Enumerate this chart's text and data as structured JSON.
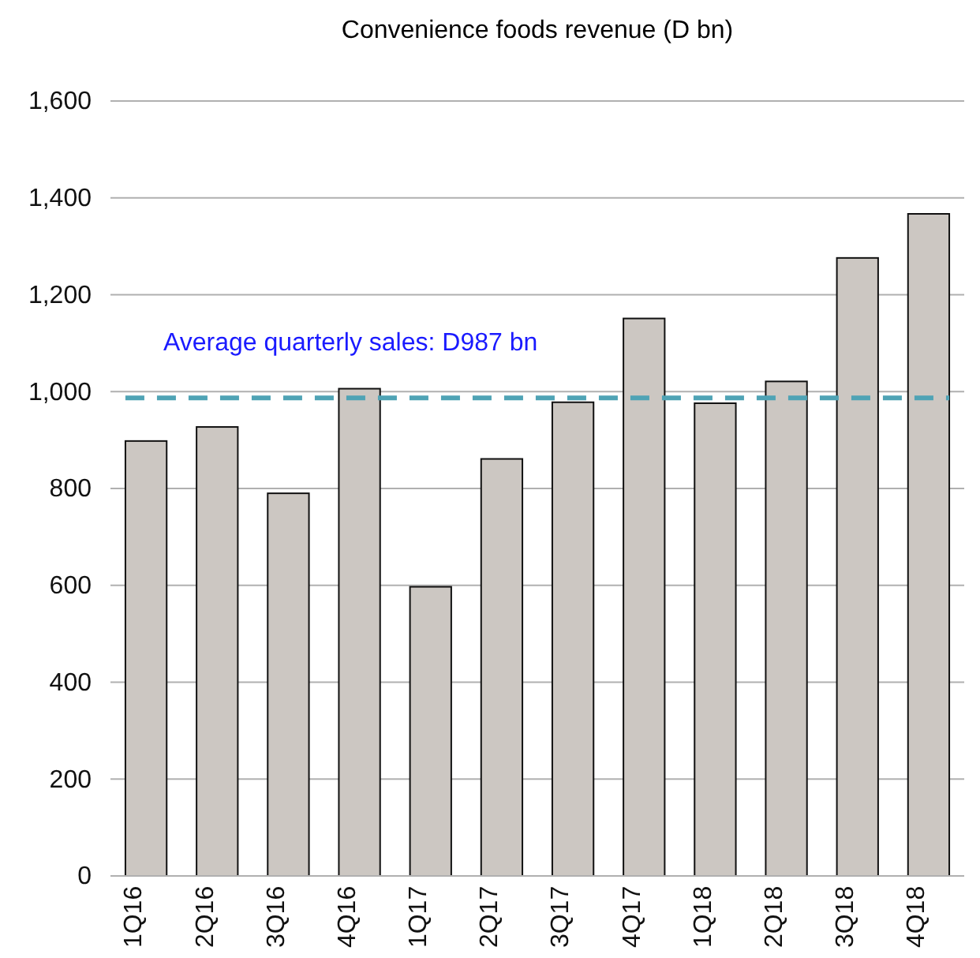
{
  "chart_data": {
    "type": "bar",
    "title": "Convenience foods revenue (D bn)",
    "categories": [
      "1Q16",
      "2Q16",
      "3Q16",
      "4Q16",
      "1Q17",
      "2Q17",
      "3Q17",
      "4Q17",
      "1Q18",
      "2Q18",
      "3Q18",
      "4Q18"
    ],
    "values": [
      898,
      927,
      790,
      1006,
      597,
      861,
      978,
      1151,
      976,
      1021,
      1276,
      1367
    ],
    "color": "#ccc7c2",
    "ylim": [
      0,
      1600
    ],
    "yticks": [
      0,
      {
        "value": 200,
        "label": "200"
      },
      {
        "value": 400,
        "label": "400"
      },
      {
        "value": 600,
        "label": "600"
      },
      {
        "value": 800,
        "label": "800"
      },
      {
        "value": 1000,
        "label": "1,000"
      },
      {
        "value": 1200,
        "label": "1,200"
      },
      {
        "value": 1400,
        "label": "1,400"
      },
      {
        "value": 1600,
        "label": "1,600"
      }
    ],
    "grid": "y",
    "ref_lines": [
      {
        "axis": "y",
        "value": 987,
        "label": "Average quarterly sales: D987 bn",
        "color": "#4fa3b5",
        "line_style": "dashed"
      }
    ]
  }
}
